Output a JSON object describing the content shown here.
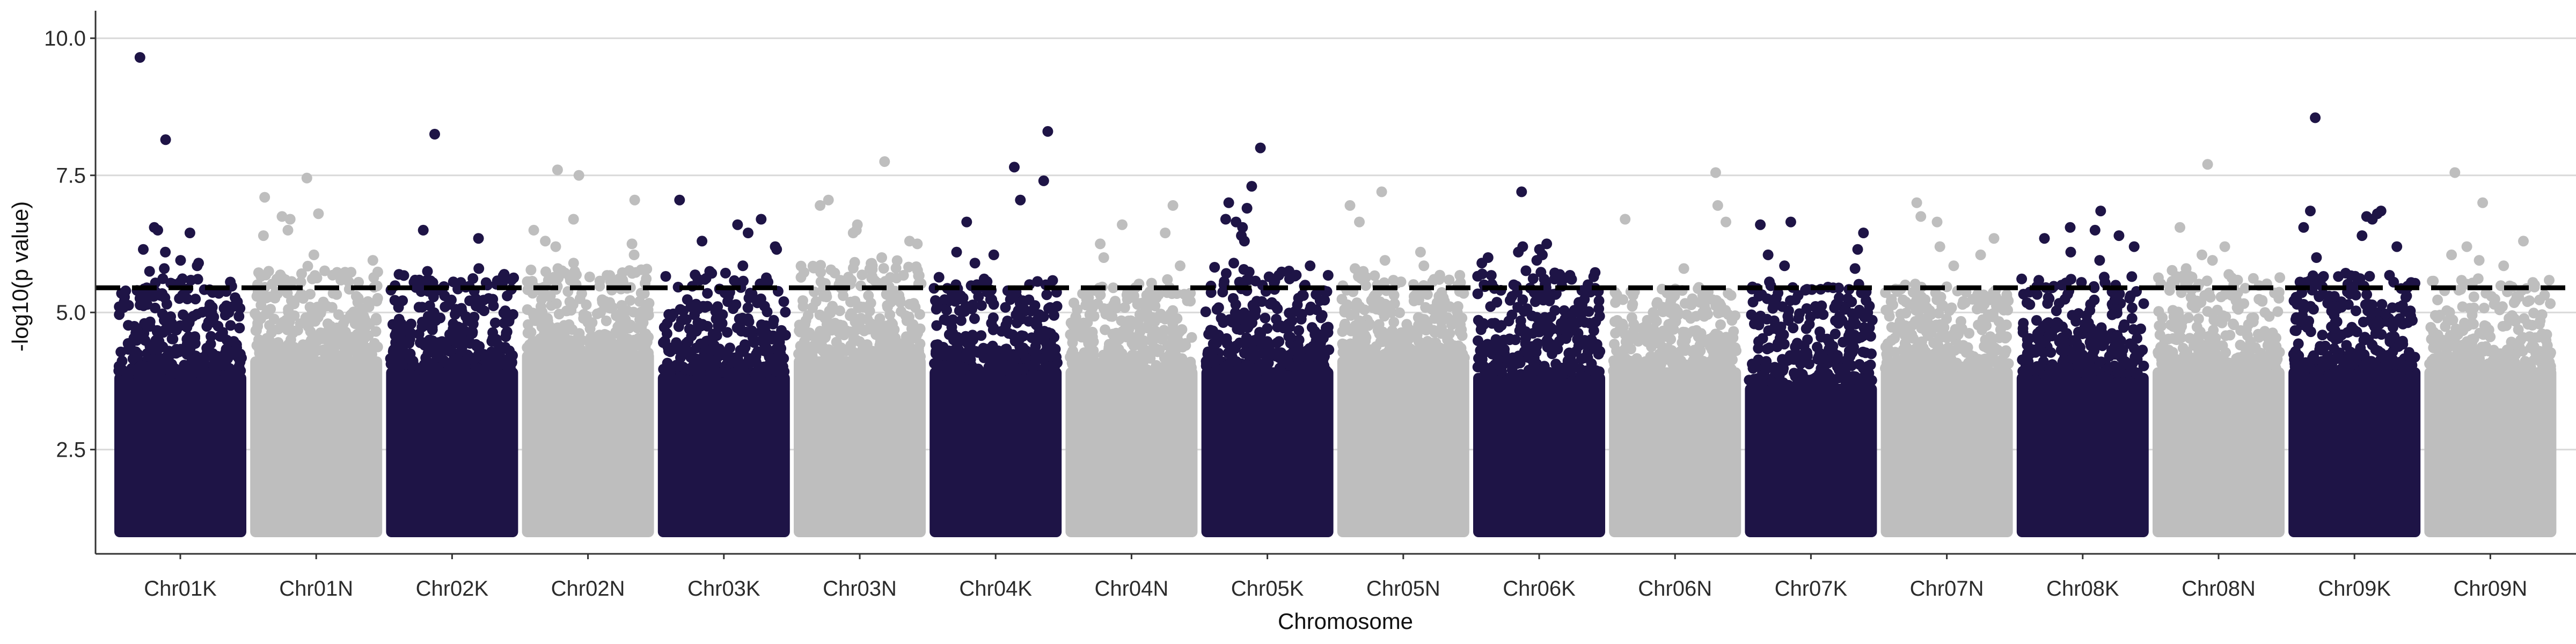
{
  "chart_data": {
    "type": "scatter",
    "subtype": "manhattan",
    "xlabel": "Chromosome",
    "ylabel": "-log10(p value)",
    "categories": [
      "Chr01K",
      "Chr01N",
      "Chr02K",
      "Chr02N",
      "Chr03K",
      "Chr03N",
      "Chr04K",
      "Chr04N",
      "Chr05K",
      "Chr05N",
      "Chr06K",
      "Chr06N",
      "Chr07K",
      "Chr07N",
      "Chr08K",
      "Chr08N",
      "Chr09K",
      "Chr09N"
    ],
    "ylim": [
      0.9,
      10.1
    ],
    "yticks": [
      2.5,
      5.0,
      7.5,
      10.0
    ],
    "ytick_labels": [
      "2.5",
      "5.0",
      "7.5",
      "10.0"
    ],
    "threshold": 5.45,
    "grid": "horizontal major lines",
    "point_range_min": 1.0,
    "dense_point_ceiling": [
      3.9,
      4.2,
      4.0,
      4.3,
      3.9,
      4.2,
      4.0,
      4.0,
      4.0,
      4.2,
      3.9,
      4.0,
      3.7,
      4.0,
      3.9,
      4.0,
      4.0,
      4.0
    ],
    "spread_point_ceiling": [
      5.6,
      5.8,
      5.7,
      5.8,
      5.7,
      5.9,
      5.6,
      5.5,
      5.8,
      5.7,
      5.8,
      5.4,
      5.5,
      5.5,
      5.6,
      5.7,
      5.7,
      5.6
    ],
    "colors": {
      "K": "#1e1446",
      "N": "#bebebe",
      "threshold_line": "#000000",
      "grid": "#d9d9d9",
      "axis": "#333333"
    },
    "peaks": [
      {
        "chr": "Chr01K",
        "values": [
          9.65,
          8.15,
          6.55,
          6.5,
          6.45,
          6.15,
          6.1,
          5.95,
          5.9,
          5.85,
          5.8,
          5.75
        ]
      },
      {
        "chr": "Chr01N",
        "values": [
          7.45,
          7.1,
          6.8,
          6.75,
          6.7,
          6.5,
          6.4,
          6.05,
          5.95
        ]
      },
      {
        "chr": "Chr02K",
        "values": [
          8.25,
          6.5,
          6.35,
          5.8,
          5.75
        ]
      },
      {
        "chr": "Chr02N",
        "values": [
          7.6,
          7.5,
          7.05,
          6.7,
          6.5,
          6.3,
          6.25,
          6.2,
          6.05,
          5.9,
          5.8,
          5.75
        ]
      },
      {
        "chr": "Chr03K",
        "values": [
          7.05,
          6.7,
          6.6,
          6.45,
          6.3,
          6.2,
          6.15,
          5.85,
          5.75
        ]
      },
      {
        "chr": "Chr03N",
        "values": [
          7.75,
          7.05,
          6.95,
          6.6,
          6.5,
          6.45,
          6.3,
          6.25,
          6.0
        ]
      },
      {
        "chr": "Chr04K",
        "values": [
          8.3,
          7.65,
          7.4,
          7.05,
          6.65,
          6.1,
          6.05,
          5.9
        ]
      },
      {
        "chr": "Chr04N",
        "values": [
          6.95,
          6.6,
          6.45,
          6.25,
          6.0,
          5.85,
          5.6
        ]
      },
      {
        "chr": "Chr05K",
        "values": [
          8.0,
          7.3,
          7.0,
          6.9,
          6.7,
          6.65,
          6.55,
          6.4,
          6.3,
          5.9,
          5.85
        ]
      },
      {
        "chr": "Chr05N",
        "values": [
          7.2,
          6.95,
          6.65,
          6.1,
          5.95,
          5.85,
          5.8,
          5.75
        ]
      },
      {
        "chr": "Chr06K",
        "values": [
          7.2,
          6.25,
          6.2,
          6.15,
          6.1,
          6.05,
          6.0,
          5.95,
          5.9
        ]
      },
      {
        "chr": "Chr06N",
        "values": [
          7.55,
          6.95,
          6.7,
          6.65,
          5.8
        ]
      },
      {
        "chr": "Chr07K",
        "values": [
          6.65,
          6.6,
          6.45,
          6.15,
          6.05,
          5.85,
          5.8
        ]
      },
      {
        "chr": "Chr07N",
        "values": [
          7.0,
          6.75,
          6.65,
          6.35,
          6.2,
          6.05,
          5.85
        ]
      },
      {
        "chr": "Chr08K",
        "values": [
          6.85,
          6.55,
          6.5,
          6.4,
          6.35,
          6.2,
          6.1,
          5.95
        ]
      },
      {
        "chr": "Chr08N",
        "values": [
          7.7,
          6.55,
          6.2,
          6.05,
          5.95,
          5.8
        ]
      },
      {
        "chr": "Chr09K",
        "values": [
          8.55,
          6.85,
          6.85,
          6.8,
          6.75,
          6.7,
          6.55,
          6.4,
          6.2,
          6.0
        ]
      },
      {
        "chr": "Chr09N",
        "values": [
          7.55,
          7.0,
          6.3,
          6.2,
          6.05,
          5.95,
          5.85
        ]
      }
    ]
  }
}
